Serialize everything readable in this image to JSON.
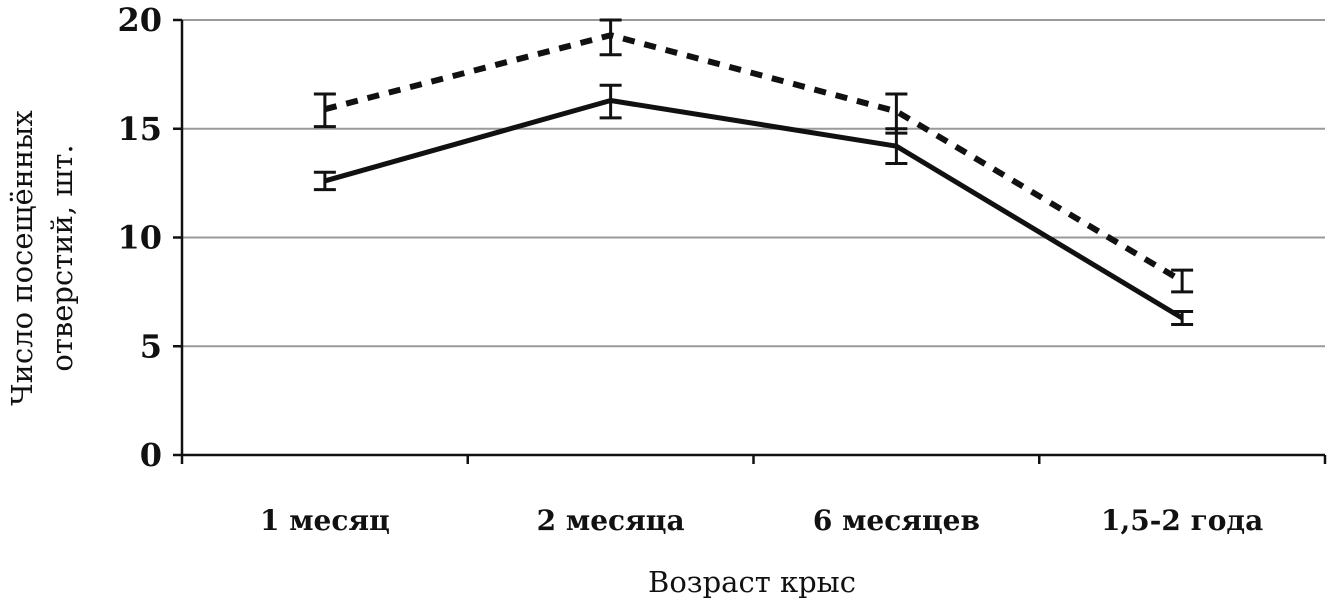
{
  "chart_data": {
    "type": "line",
    "title": "",
    "xlabel": "Возраст крыс",
    "ylabel_lines": [
      "Число посещённых",
      "отверстий, шт."
    ],
    "categories": [
      "1 месяц",
      "2 месяца",
      "6 месяцев",
      "1,5-2 года"
    ],
    "ylim": [
      0,
      20
    ],
    "yticks": [
      0,
      5,
      10,
      15,
      20
    ],
    "grid": true,
    "series": [
      {
        "style": "dashed",
        "color": "#111111",
        "values": [
          15.9,
          19.3,
          15.8,
          8.0
        ],
        "err_low": [
          15.1,
          18.4,
          14.8,
          7.5
        ],
        "err_high": [
          16.6,
          20.0,
          16.6,
          8.5
        ]
      },
      {
        "style": "solid",
        "color": "#111111",
        "values": [
          12.6,
          16.3,
          14.2,
          6.3
        ],
        "err_low": [
          12.2,
          15.5,
          13.4,
          6.0
        ],
        "err_high": [
          13.0,
          17.0,
          15.0,
          6.6
        ]
      }
    ]
  }
}
